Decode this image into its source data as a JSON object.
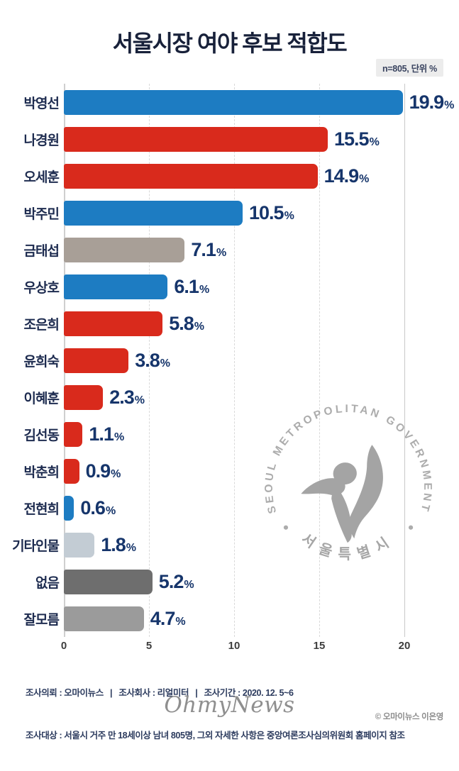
{
  "title": "서울시장 여야 후보 적합도",
  "note": "n=805, 단위 %",
  "chart_data": {
    "type": "bar",
    "orientation": "horizontal",
    "title": "서울시장 여야 후보 적합도",
    "subtitle": "n=805, 단위 %",
    "categories": [
      "박영선",
      "나경원",
      "오세훈",
      "박주민",
      "금태섭",
      "우상호",
      "조은희",
      "윤희숙",
      "이혜훈",
      "김선동",
      "박춘희",
      "전현희",
      "기타인물",
      "없음",
      "잘모름"
    ],
    "values": [
      19.9,
      15.5,
      14.9,
      10.5,
      7.1,
      6.1,
      5.8,
      3.8,
      2.3,
      1.1,
      0.9,
      0.6,
      1.8,
      5.2,
      4.7
    ],
    "value_suffix": "%",
    "color_keys": [
      "blue",
      "red",
      "red",
      "blue",
      "taupe",
      "blue",
      "red",
      "red",
      "red",
      "red",
      "red",
      "blue",
      "steel",
      "dark",
      "mid"
    ],
    "palette": {
      "blue": "#1d7cc2",
      "red": "#d92a1c",
      "taupe": "#a89f97",
      "steel": "#c3ccd4",
      "dark": "#6e6e6e",
      "mid": "#9b9b9b"
    },
    "xlim": [
      0,
      20
    ],
    "xticks": [
      0,
      5,
      10,
      15,
      20
    ],
    "grid": "vertical dashed at 5/10/15, solid edges at 0 and 20",
    "legend": "none"
  },
  "watermark": {
    "arc_text": "SEOUL METROPOLITAN GOVERNMENT",
    "bottom_text": "서울특별시"
  },
  "footer": {
    "line1": "조사의뢰 : 오마이뉴스   |   조사회사 : 리얼미터   |   조사기간 : 2020. 12. 5~6",
    "line2": "조사대상 : 서울시 거주 만 18세이상 남녀 805명, 그외 자세한 사항은 중앙여론조사심의위원회 홈페이지 참조"
  },
  "branding": {
    "logo": "OhmyNews",
    "credit": "© 오마이뉴스 이은영"
  }
}
